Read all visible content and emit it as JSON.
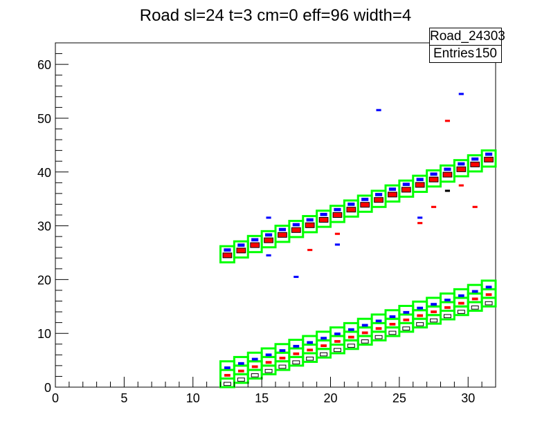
{
  "chart_data": {
    "type": "heatmap",
    "title": "Road sl=24 t=3 cm=0 eff=96 width=4",
    "xlabel": "",
    "ylabel": "",
    "xlim": [
      0,
      32
    ],
    "ylim": [
      0,
      64
    ],
    "x_ticks": [
      "0",
      "5",
      "10",
      "15",
      "20",
      "25",
      "30"
    ],
    "y_ticks": [
      "0",
      "10",
      "20",
      "30",
      "40",
      "50",
      "60"
    ],
    "stats": {
      "name": "Road_24303",
      "entries_label": "Entries",
      "entries": "150"
    },
    "colors": {
      "road_box": "#00ff00",
      "red": "#ff0000",
      "blue": "#0000ff",
      "black": "#000000"
    },
    "columns_x": [
      12,
      13,
      14,
      15,
      16,
      17,
      18,
      19,
      20,
      21,
      22,
      23,
      24,
      25,
      26,
      27,
      28,
      29,
      30,
      31
    ],
    "upper_road_ylow": [
      23.2,
      24.1,
      25.1,
      26.0,
      27.0,
      27.9,
      28.8,
      29.8,
      30.7,
      31.7,
      32.6,
      33.5,
      34.5,
      35.4,
      36.3,
      37.3,
      38.2,
      39.2,
      40.1,
      41.0
    ],
    "upper_road_height": 3,
    "lower_road_ylow": [
      0,
      0.8,
      1.6,
      2.4,
      3.2,
      4.0,
      4.7,
      5.5,
      6.3,
      7.1,
      7.9,
      8.7,
      9.5,
      10.3,
      11.1,
      11.8,
      12.6,
      13.4,
      14.2,
      15.0
    ],
    "lower_road_box_height": 1.6,
    "lower_road_boxes_per_column": 3,
    "hits": {
      "upper_red": [
        24.5,
        25.4,
        26.4,
        27.3,
        28.3,
        29.2,
        30.1,
        31.1,
        32.0,
        33.0,
        33.9,
        34.8,
        35.8,
        36.7,
        37.6,
        38.6,
        39.5,
        40.5,
        41.4,
        42.3
      ],
      "upper_blue": [
        25.5,
        26.4,
        27.4,
        28.3,
        29.3,
        30.2,
        31.1,
        32.1,
        33.0,
        34.0,
        34.9,
        35.8,
        36.8,
        37.7,
        38.6,
        39.6,
        40.5,
        41.5,
        42.4,
        43.3
      ],
      "lower_black": [
        0.6,
        1.4,
        2.2,
        3.0,
        3.8,
        4.6,
        5.3,
        6.1,
        6.9,
        7.7,
        8.5,
        9.3,
        10.1,
        10.9,
        11.7,
        12.4,
        13.2,
        14.0,
        14.8,
        15.6
      ],
      "lower_red": [
        2.2,
        3.0,
        3.8,
        4.6,
        5.4,
        6.2,
        6.9,
        7.7,
        8.5,
        9.3,
        10.1,
        10.9,
        11.7,
        12.5,
        13.3,
        14.0,
        14.8,
        15.6,
        16.4,
        17.2
      ],
      "lower_blue": [
        3.6,
        4.4,
        5.2,
        6.0,
        6.8,
        7.6,
        8.3,
        9.1,
        9.9,
        10.7,
        11.5,
        12.3,
        13.1,
        13.9,
        14.7,
        15.4,
        16.2,
        17.0,
        17.8,
        18.6
      ]
    },
    "outliers": [
      {
        "x": 23.5,
        "y": 51.5,
        "c": "blue"
      },
      {
        "x": 29.5,
        "y": 54.5,
        "c": "blue"
      },
      {
        "x": 15.5,
        "y": 31.5,
        "c": "blue"
      },
      {
        "x": 17.5,
        "y": 20.5,
        "c": "blue"
      },
      {
        "x": 26.5,
        "y": 31.5,
        "c": "blue"
      },
      {
        "x": 20.5,
        "y": 26.5,
        "c": "blue"
      },
      {
        "x": 15.5,
        "y": 24.5,
        "c": "blue"
      },
      {
        "x": 28.5,
        "y": 49.5,
        "c": "red"
      },
      {
        "x": 29.5,
        "y": 37.5,
        "c": "red"
      },
      {
        "x": 30.5,
        "y": 33.5,
        "c": "red"
      },
      {
        "x": 27.5,
        "y": 33.5,
        "c": "red"
      },
      {
        "x": 26.5,
        "y": 30.5,
        "c": "red"
      },
      {
        "x": 18.5,
        "y": 25.5,
        "c": "red"
      },
      {
        "x": 20.5,
        "y": 28.5,
        "c": "red"
      },
      {
        "x": 28.5,
        "y": 36.5,
        "c": "black"
      }
    ]
  }
}
